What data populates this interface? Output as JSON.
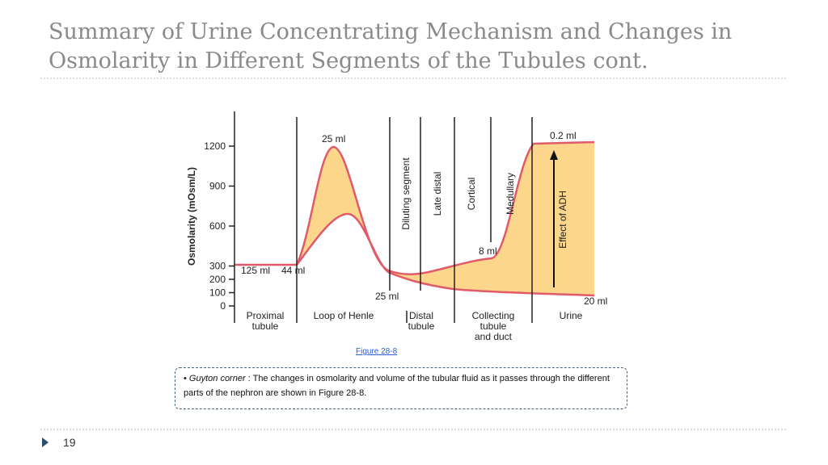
{
  "header": {
    "title": "Summary of Urine Concentrating Mechanism and Changes in Osmolarity in Different Segments of the Tubules cont."
  },
  "figure": {
    "y_label": "Osmolarity (mOsm/L)",
    "ylim": [
      0,
      1400
    ],
    "yticks": [
      0,
      100,
      200,
      300,
      600,
      900,
      1200
    ],
    "segments": [
      "Proximal\ntubule",
      "Loop of Henle",
      "Distal\ntubule",
      "Collecting\ntubule\nand duct",
      "Urine"
    ],
    "sublabels": [
      "Diluting segment",
      "Late distal",
      "Cortical",
      "Medullary"
    ],
    "annotations": [
      "125 ml",
      "44 ml",
      "25 ml",
      "25 ml",
      "8 ml",
      "0.2 ml",
      "20 ml",
      "Effect of ADH"
    ],
    "caption": "Figure 28-8"
  },
  "note": {
    "lead": "Guyton corner",
    "text": " : The changes in osmolarity and volume of the tubular fluid as it passes through the different parts of the nephron are shown in Figure 28-8."
  },
  "footer": {
    "page": "19"
  }
}
